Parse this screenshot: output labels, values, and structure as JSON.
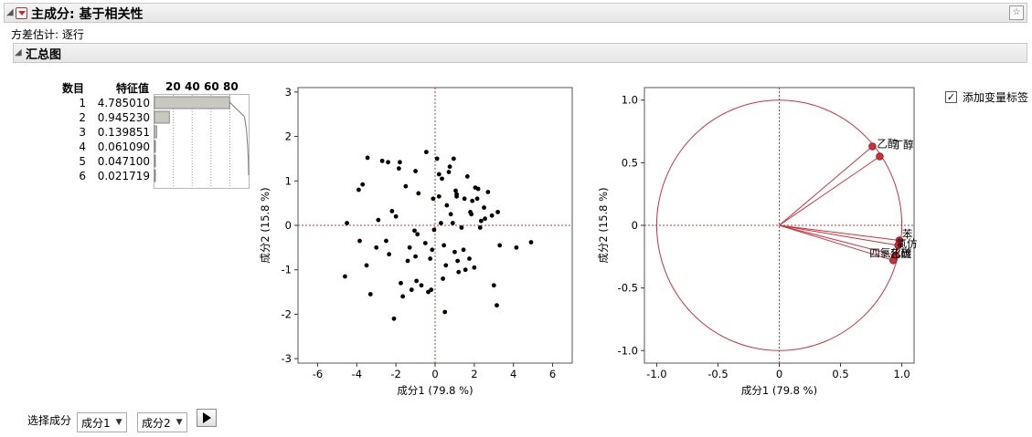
{
  "header": {
    "title": "主成分: 基于相关性"
  },
  "variance_estimate": "方差估计: 逐行",
  "summary": {
    "title": "汇总图"
  },
  "eigen_table": {
    "col_number": "数目",
    "col_eigen": "特征值",
    "bar_axis_ticks": [
      "20",
      "40",
      "60",
      "80"
    ],
    "rows": [
      {
        "n": "1",
        "value": "4.785010",
        "percent": 79.8
      },
      {
        "n": "2",
        "value": "0.945230",
        "percent": 15.8
      },
      {
        "n": "3",
        "value": "0.139851",
        "percent": 2.3
      },
      {
        "n": "4",
        "value": "0.061090",
        "percent": 1.0
      },
      {
        "n": "5",
        "value": "0.047100",
        "percent": 0.8
      },
      {
        "n": "6",
        "value": "0.021719",
        "percent": 0.4
      }
    ],
    "cumulative_percent": [
      79.8,
      95.6,
      97.9,
      98.9,
      99.7,
      100
    ]
  },
  "chart_data": [
    {
      "type": "scatter",
      "title": "",
      "xlabel": "成分1 (79.8 %)",
      "ylabel": "成分2 (15.8 %)",
      "xlim": [
        -7,
        7
      ],
      "ylim": [
        -3.1,
        3.1
      ],
      "xticks": [
        "-6",
        "-4",
        "-2",
        "0",
        "2",
        "4",
        "6"
      ],
      "yticks": [
        "-3",
        "-2",
        "-1",
        "0",
        "1",
        "2",
        "3"
      ],
      "points": [
        [
          -4.6,
          -1.15
        ],
        [
          -4.5,
          0.05
        ],
        [
          -3.9,
          0.8
        ],
        [
          -3.7,
          0.92
        ],
        [
          -3.85,
          -0.35
        ],
        [
          -3.5,
          -0.9
        ],
        [
          -3.45,
          1.52
        ],
        [
          -3.3,
          -1.55
        ],
        [
          -3.0,
          -0.5
        ],
        [
          -2.9,
          0.12
        ],
        [
          -2.7,
          1.45
        ],
        [
          -2.5,
          -0.35
        ],
        [
          -2.4,
          1.42
        ],
        [
          -2.35,
          -0.65
        ],
        [
          -2.2,
          0.32
        ],
        [
          -2.1,
          -2.1
        ],
        [
          -2.0,
          0.2
        ],
        [
          -1.85,
          1.28
        ],
        [
          -1.8,
          1.42
        ],
        [
          -1.75,
          -1.3
        ],
        [
          -1.65,
          -1.6
        ],
        [
          -1.5,
          0.88
        ],
        [
          -1.4,
          -0.8
        ],
        [
          -1.3,
          -0.5
        ],
        [
          -1.2,
          -1.45
        ],
        [
          -1.05,
          -0.12
        ],
        [
          -1.0,
          -0.7
        ],
        [
          -1.0,
          1.22
        ],
        [
          -0.95,
          -1.25
        ],
        [
          -0.9,
          -0.2
        ],
        [
          -0.85,
          0.72
        ],
        [
          -0.7,
          -1.35
        ],
        [
          -0.5,
          -0.4
        ],
        [
          -0.45,
          1.65
        ],
        [
          -0.35,
          -1.5
        ],
        [
          -0.25,
          -0.75
        ],
        [
          -0.2,
          -1.45
        ],
        [
          -0.15,
          -0.55
        ],
        [
          -0.1,
          0.6
        ],
        [
          -0.05,
          -0.1
        ],
        [
          0.1,
          1.5
        ],
        [
          0.2,
          1.15
        ],
        [
          0.2,
          0.65
        ],
        [
          0.3,
          0.05
        ],
        [
          0.35,
          1.05
        ],
        [
          0.4,
          -1.2
        ],
        [
          0.45,
          -0.45
        ],
        [
          0.5,
          -1.95
        ],
        [
          0.55,
          -0.9
        ],
        [
          0.6,
          0.45
        ],
        [
          0.7,
          1.2
        ],
        [
          0.75,
          1.32
        ],
        [
          0.8,
          0.25
        ],
        [
          0.9,
          0.05
        ],
        [
          0.95,
          1.5
        ],
        [
          1.0,
          -0.6
        ],
        [
          1.05,
          0.78
        ],
        [
          1.1,
          0.65
        ],
        [
          1.1,
          0.7
        ],
        [
          1.15,
          -0.8
        ],
        [
          1.2,
          -1.05
        ],
        [
          1.35,
          -0.05
        ],
        [
          1.45,
          -0.55
        ],
        [
          1.5,
          0.6
        ],
        [
          1.55,
          -1.0
        ],
        [
          1.65,
          1.1
        ],
        [
          1.75,
          -0.75
        ],
        [
          1.8,
          0.3
        ],
        [
          1.85,
          0.25
        ],
        [
          1.9,
          0.55
        ],
        [
          2.0,
          -0.95
        ],
        [
          2.05,
          0.85
        ],
        [
          2.15,
          0.6
        ],
        [
          2.2,
          0.82
        ],
        [
          2.3,
          -0.05
        ],
        [
          2.35,
          0.1
        ],
        [
          2.5,
          0.4
        ],
        [
          2.55,
          0.15
        ],
        [
          2.7,
          0.75
        ],
        [
          2.9,
          0.22
        ],
        [
          3.0,
          -1.35
        ],
        [
          3.15,
          -1.8
        ],
        [
          3.2,
          0.3
        ],
        [
          3.3,
          -0.45
        ],
        [
          4.15,
          -0.5
        ],
        [
          4.9,
          -0.38
        ]
      ]
    },
    {
      "type": "scatter",
      "title": "",
      "xlabel": "成分1 (79.8 %)",
      "ylabel": "成分2 (15.8 %)",
      "xlim": [
        -1.1,
        1.1
      ],
      "ylim": [
        -1.1,
        1.1
      ],
      "xticks": [
        "-1.0",
        "-0.5",
        "0",
        "0.5",
        "1.0"
      ],
      "yticks": [
        "-1.0",
        "-0.5",
        "0",
        "0.5",
        "1.0"
      ],
      "unit_circle": true,
      "loadings": [
        {
          "label": "乙醇",
          "x": 0.76,
          "y": 0.63
        },
        {
          "label": "丁醇",
          "x": 0.82,
          "y": 0.55
        },
        {
          "label": "苯",
          "x": 0.98,
          "y": -0.12
        },
        {
          "label": "",
          "x": 0.97,
          "y": -0.16
        },
        {
          "label": "",
          "x": 0.95,
          "y": -0.24
        },
        {
          "label": "四氯化碳",
          "x": 0.93,
          "y": -0.28
        }
      ],
      "overlap_label_text": [
        "乙醇",
        "丁醇",
        "四氯化碳",
        "氯仿",
        "乙醚"
      ]
    }
  ],
  "add_var_labels": {
    "label": "添加变量标签",
    "checked": true
  },
  "select_components": {
    "label": "选择成分",
    "first": "成分1",
    "second": "成分2"
  },
  "colors": {
    "accent_red": "#d0303a",
    "bar_fill": "#c8c8c0"
  }
}
